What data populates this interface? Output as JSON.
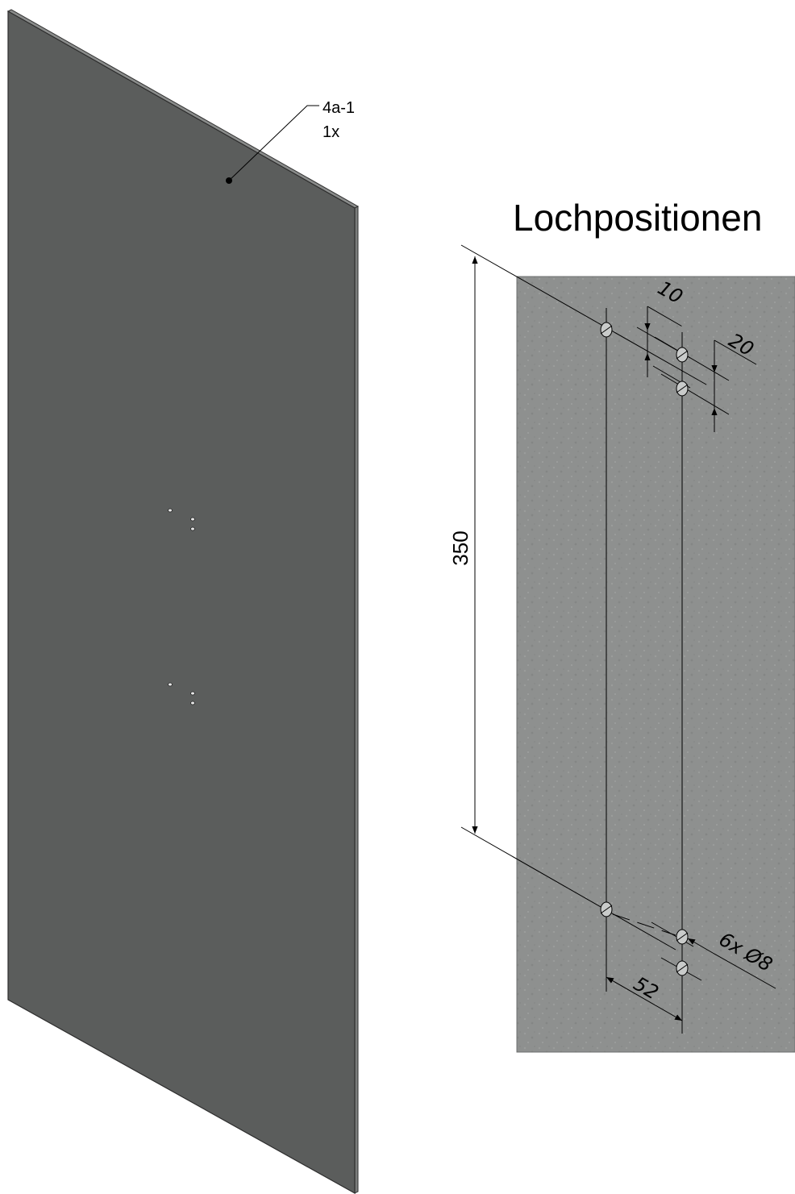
{
  "part": {
    "id": "4a-1",
    "quantity": "1x"
  },
  "detail": {
    "title": "Lochpositionen",
    "dimensions": {
      "hole_spacing_1": "10",
      "hole_spacing_2": "20",
      "overall_height": "350",
      "horizontal_offset": "52",
      "hole_callout": "6x Ø8"
    }
  },
  "colors": {
    "panel_face": "#5b5d5c",
    "panel_edge": "#8a8c8b",
    "detail_background": "#8e908f",
    "line": "#000000"
  }
}
